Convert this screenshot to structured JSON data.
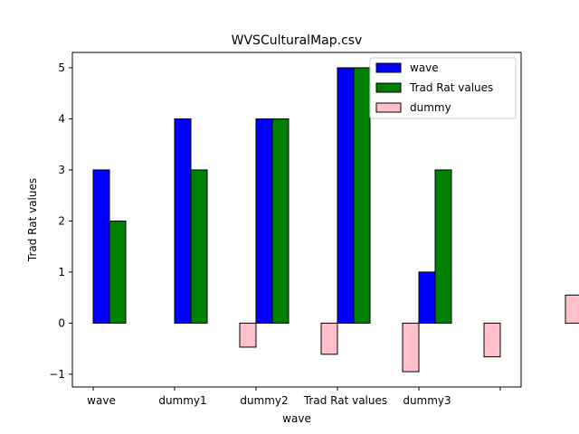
{
  "chart_data": {
    "type": "bar",
    "title": "WVSCulturalMap.csv",
    "xlabel": "wave",
    "ylabel": "Trad Rat values",
    "categories": [
      "wave",
      "dummy1",
      "dummy2",
      "Trad Rat values",
      "dummy3",
      ""
    ],
    "ylim": [
      -1.25,
      5.3
    ],
    "yticks": [
      -1,
      0,
      1,
      2,
      3,
      4,
      5
    ],
    "ytick_labels": [
      "−1",
      "0",
      "1",
      "2",
      "3",
      "4",
      "5"
    ],
    "grid": false,
    "legend_position": "top-right",
    "series": [
      {
        "name": "wave",
        "color": "#0000ff",
        "values": [
          3,
          4,
          4,
          5,
          1,
          null
        ]
      },
      {
        "name": "Trad Rat values",
        "color": "#008000",
        "values": [
          2,
          3,
          4,
          5,
          3,
          null
        ]
      },
      {
        "name": "dummy",
        "color": "#ffc0cb",
        "values": [
          null,
          -0.47,
          -0.61,
          -0.95,
          -0.66,
          0.55
        ]
      }
    ]
  }
}
